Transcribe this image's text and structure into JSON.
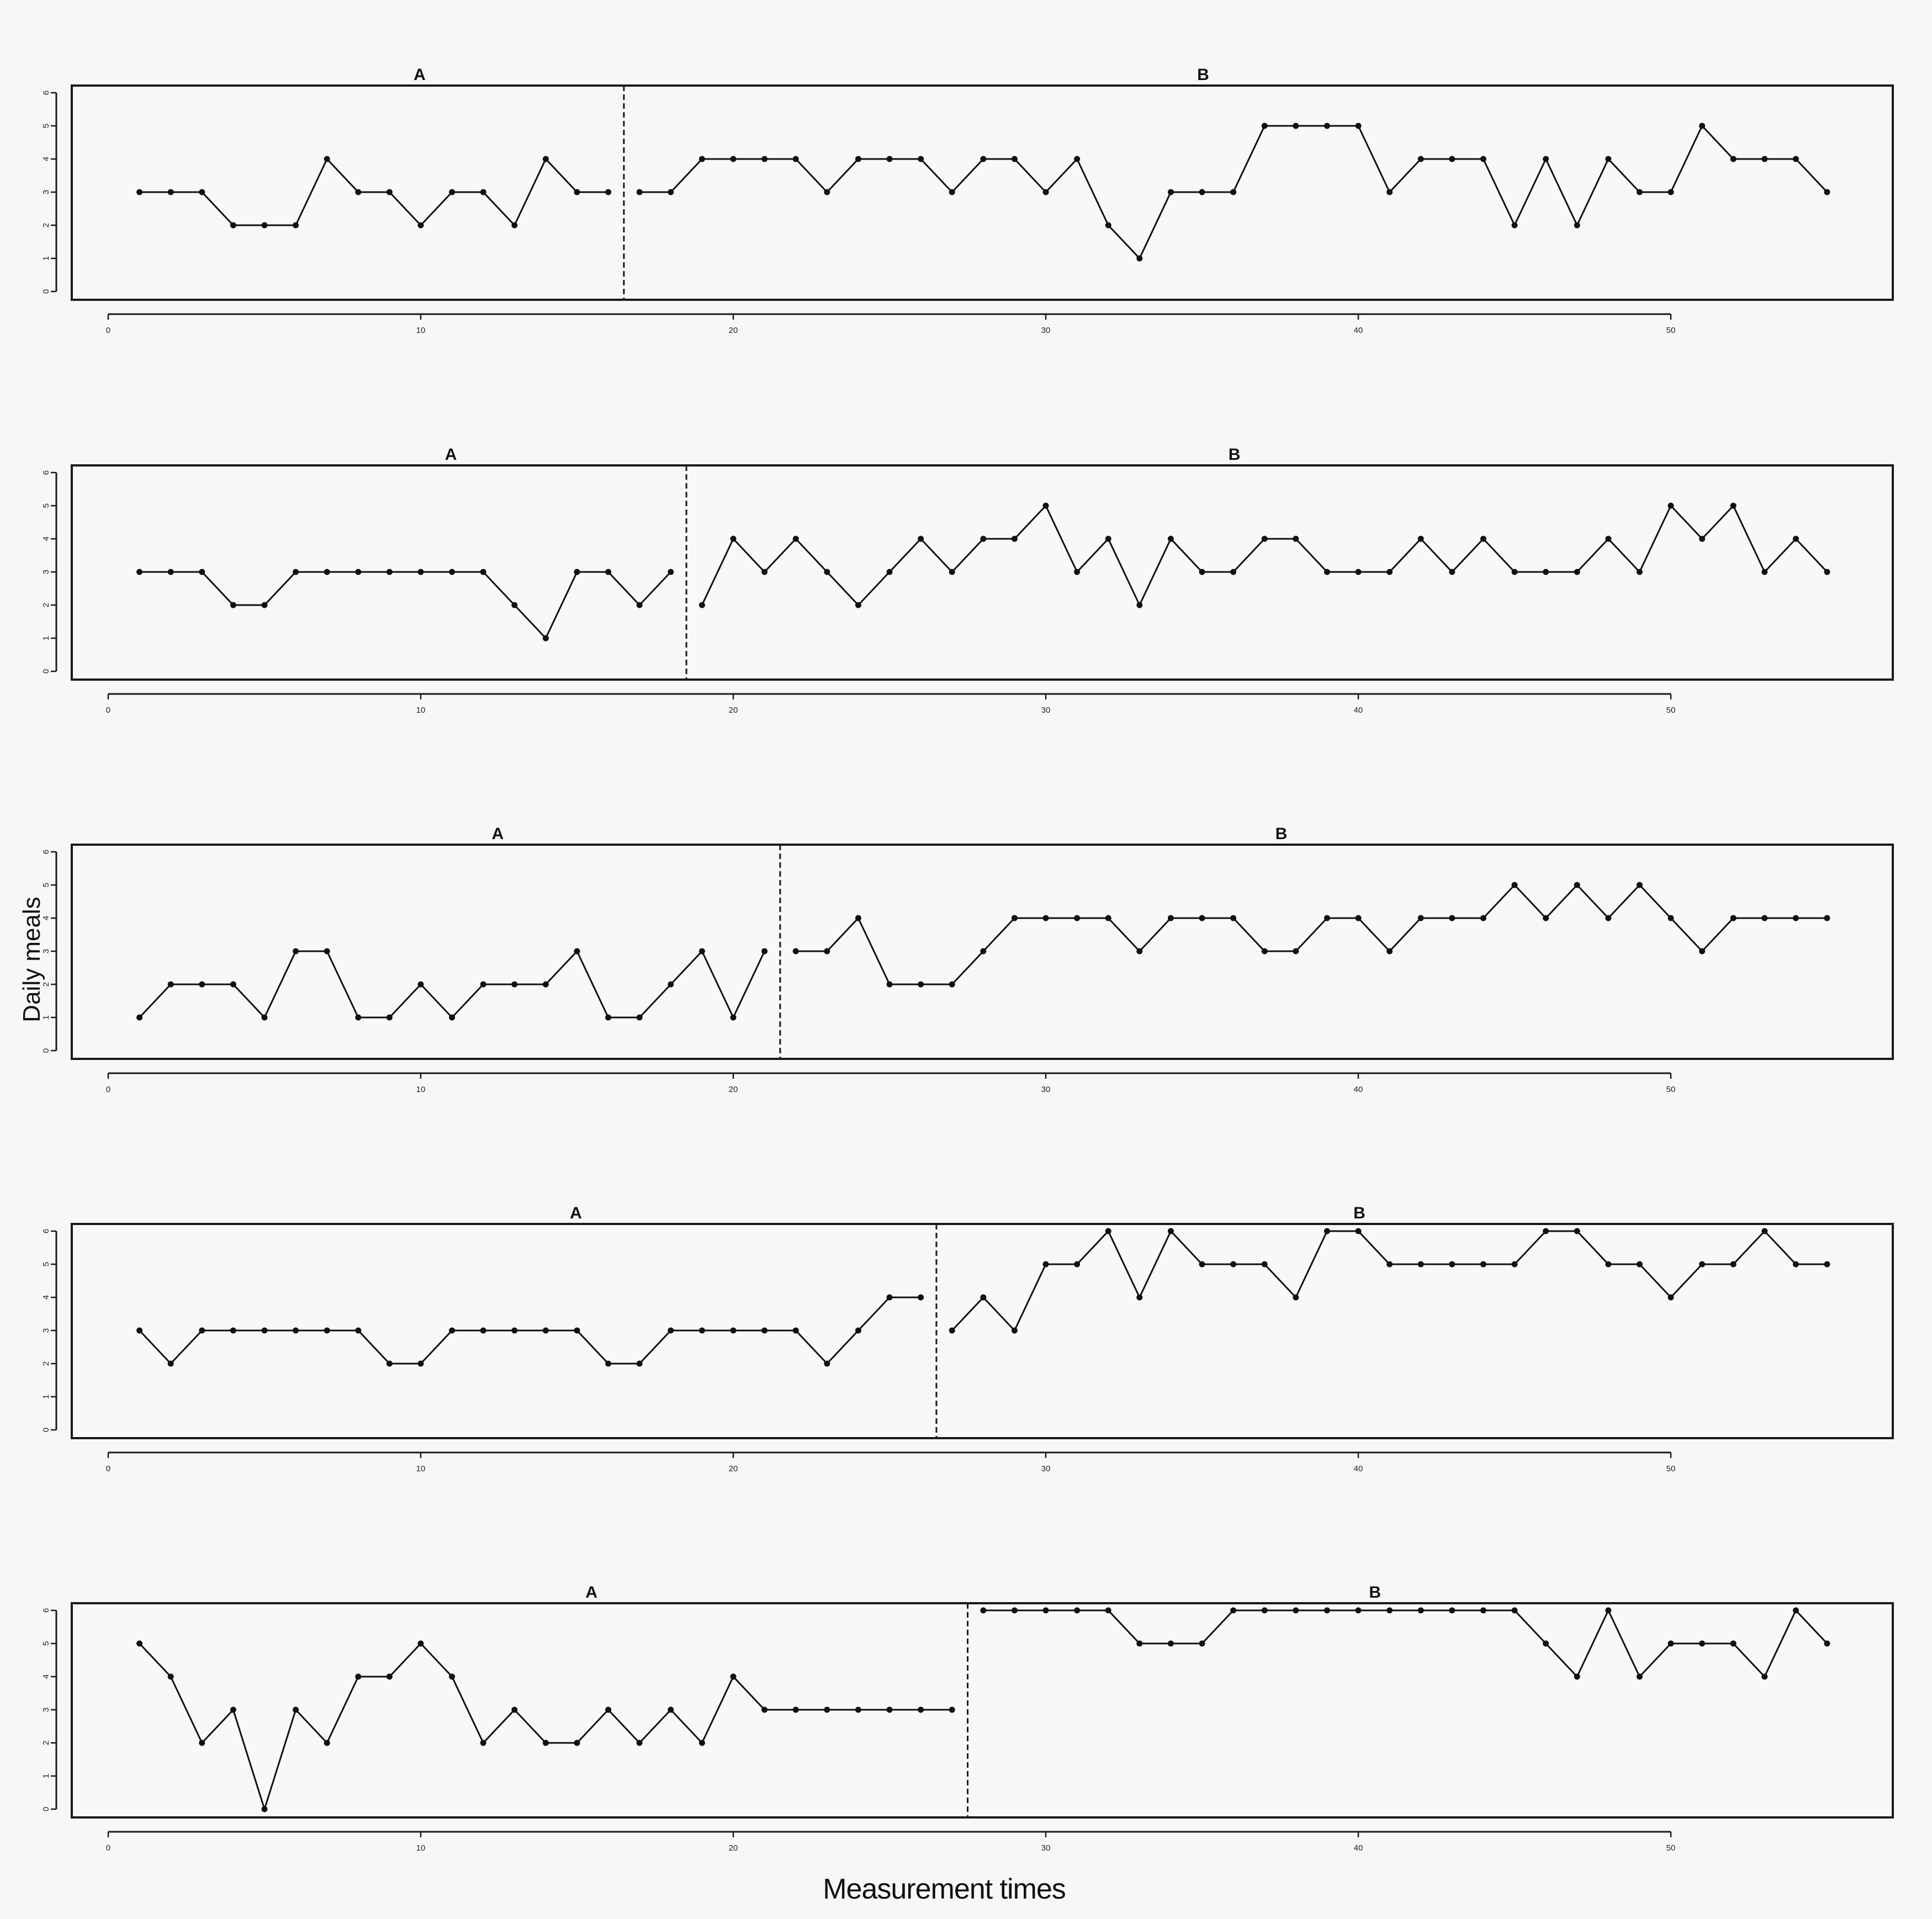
{
  "figure": {
    "ylabel": "Daily meals",
    "xlabel": "Measurement times"
  },
  "chart_data": [
    {
      "type": "line",
      "phase_labels": [
        "A",
        "B"
      ],
      "phase_change_after": 16.5,
      "xlim": [
        0,
        57
      ],
      "ylim": [
        0,
        6
      ],
      "xticks": [
        0,
        10,
        20,
        30,
        40,
        50
      ],
      "yticks": [
        0,
        1,
        2,
        3,
        4,
        5,
        6
      ],
      "phase_a": {
        "x": [
          1,
          2,
          3,
          4,
          5,
          6,
          7,
          8,
          9,
          10,
          11,
          12,
          13,
          14,
          15,
          16
        ],
        "y": [
          3,
          3,
          3,
          2,
          2,
          2,
          4,
          3,
          3,
          2,
          3,
          3,
          2,
          4,
          3,
          3
        ]
      },
      "phase_b": {
        "x": [
          17,
          18,
          19,
          20,
          21,
          22,
          23,
          24,
          25,
          26,
          27,
          28,
          29,
          30,
          31,
          32,
          33,
          34,
          35,
          36,
          37,
          38,
          39,
          40,
          41,
          42,
          43,
          44,
          45,
          46,
          47,
          48,
          49,
          50,
          51,
          52,
          53,
          54,
          55
        ],
        "y": [
          3,
          3,
          4,
          4,
          4,
          4,
          3,
          4,
          4,
          4,
          3,
          4,
          4,
          3,
          4,
          2,
          1,
          3,
          3,
          3,
          5,
          5,
          5,
          5,
          3,
          4,
          4,
          4,
          2,
          4,
          2,
          4,
          3,
          3,
          5,
          4,
          4,
          4,
          3
        ]
      }
    },
    {
      "type": "line",
      "phase_labels": [
        "A",
        "B"
      ],
      "phase_change_after": 18.5,
      "xlim": [
        0,
        57
      ],
      "ylim": [
        0,
        6
      ],
      "xticks": [
        0,
        10,
        20,
        30,
        40,
        50
      ],
      "yticks": [
        0,
        1,
        2,
        3,
        4,
        5,
        6
      ],
      "phase_a": {
        "x": [
          1,
          2,
          3,
          4,
          5,
          6,
          7,
          8,
          9,
          10,
          11,
          12,
          13,
          14,
          15,
          16,
          17,
          18
        ],
        "y": [
          3,
          3,
          3,
          2,
          2,
          3,
          3,
          3,
          3,
          3,
          3,
          3,
          2,
          1,
          3,
          3,
          2,
          3
        ]
      },
      "phase_b": {
        "x": [
          19,
          20,
          21,
          22,
          23,
          24,
          25,
          26,
          27,
          28,
          29,
          30,
          31,
          32,
          33,
          34,
          35,
          36,
          37,
          38,
          39,
          40,
          41,
          42,
          43,
          44,
          45,
          46,
          47,
          48,
          49,
          50,
          51,
          52,
          53,
          54,
          55
        ],
        "y": [
          2,
          4,
          3,
          4,
          3,
          2,
          3,
          4,
          3,
          4,
          4,
          5,
          3,
          4,
          2,
          4,
          3,
          3,
          4,
          4,
          3,
          3,
          3,
          4,
          3,
          4,
          3,
          3,
          3,
          4,
          3,
          5,
          4,
          5,
          3,
          4,
          3
        ]
      }
    },
    {
      "type": "line",
      "phase_labels": [
        "A",
        "B"
      ],
      "phase_change_after": 21.5,
      "xlim": [
        0,
        57
      ],
      "ylim": [
        0,
        6
      ],
      "xticks": [
        0,
        10,
        20,
        30,
        40,
        50
      ],
      "yticks": [
        0,
        1,
        2,
        3,
        4,
        5,
        6
      ],
      "phase_a": {
        "x": [
          1,
          2,
          3,
          4,
          5,
          6,
          7,
          8,
          9,
          10,
          11,
          12,
          13,
          14,
          15,
          16,
          17,
          18,
          19,
          20,
          21
        ],
        "y": [
          1,
          2,
          2,
          2,
          1,
          3,
          3,
          1,
          1,
          2,
          1,
          2,
          2,
          2,
          3,
          1,
          1,
          2,
          3,
          1,
          3
        ]
      },
      "phase_b": {
        "x": [
          22,
          23,
          24,
          25,
          26,
          27,
          28,
          29,
          30,
          31,
          32,
          33,
          34,
          35,
          36,
          37,
          38,
          39,
          40,
          41,
          42,
          43,
          44,
          45,
          46,
          47,
          48,
          49,
          50,
          51,
          52,
          53,
          54,
          55
        ],
        "y": [
          3,
          3,
          4,
          2,
          2,
          2,
          3,
          4,
          4,
          4,
          4,
          3,
          4,
          4,
          4,
          3,
          3,
          4,
          4,
          3,
          4,
          4,
          4,
          5,
          4,
          5,
          4,
          5,
          4,
          3,
          4,
          4,
          4,
          4
        ]
      }
    },
    {
      "type": "line",
      "phase_labels": [
        "A",
        "B"
      ],
      "phase_change_after": 26.5,
      "xlim": [
        0,
        57
      ],
      "ylim": [
        0,
        6
      ],
      "xticks": [
        0,
        10,
        20,
        30,
        40,
        50
      ],
      "yticks": [
        0,
        1,
        2,
        3,
        4,
        5,
        6
      ],
      "phase_a": {
        "x": [
          1,
          2,
          3,
          4,
          5,
          6,
          7,
          8,
          9,
          10,
          11,
          12,
          13,
          14,
          15,
          16,
          17,
          18,
          19,
          20,
          21,
          22,
          23,
          24,
          25,
          26
        ],
        "y": [
          3,
          2,
          3,
          3,
          3,
          3,
          3,
          3,
          2,
          2,
          3,
          3,
          3,
          3,
          3,
          2,
          2,
          3,
          3,
          3,
          3,
          3,
          2,
          3,
          4,
          4
        ]
      },
      "phase_b": {
        "x": [
          27,
          28,
          29,
          30,
          31,
          32,
          33,
          34,
          35,
          36,
          37,
          38,
          39,
          40,
          41,
          42,
          43,
          44,
          45,
          46,
          47,
          48,
          49,
          50,
          51,
          52,
          53,
          54,
          55
        ],
        "y": [
          3,
          4,
          3,
          5,
          5,
          6,
          4,
          6,
          5,
          5,
          5,
          4,
          6,
          6,
          5,
          5,
          5,
          5,
          5,
          6,
          6,
          5,
          5,
          4,
          5,
          5,
          6,
          5,
          5
        ]
      }
    },
    {
      "type": "line",
      "phase_labels": [
        "A",
        "B"
      ],
      "phase_change_after": 27.5,
      "xlim": [
        0,
        57
      ],
      "ylim": [
        0,
        6
      ],
      "xticks": [
        0,
        10,
        20,
        30,
        40,
        50
      ],
      "yticks": [
        0,
        1,
        2,
        3,
        4,
        5,
        6
      ],
      "phase_a": {
        "x": [
          1,
          2,
          3,
          4,
          5,
          6,
          7,
          8,
          9,
          10,
          11,
          12,
          13,
          14,
          15,
          16,
          17,
          18,
          19,
          20,
          21,
          22,
          23,
          24,
          25,
          26,
          27
        ],
        "y": [
          5,
          4,
          2,
          3,
          0,
          3,
          2,
          4,
          4,
          5,
          4,
          2,
          3,
          2,
          2,
          3,
          2,
          3,
          2,
          4,
          3,
          3,
          3,
          3,
          3,
          3,
          3
        ]
      },
      "phase_b": {
        "x": [
          28,
          29,
          30,
          31,
          32,
          33,
          34,
          35,
          36,
          37,
          38,
          39,
          40,
          41,
          42,
          43,
          44,
          45,
          46,
          47,
          48,
          49,
          50,
          51,
          52,
          53,
          54,
          55
        ],
        "y": [
          6,
          6,
          6,
          6,
          6,
          5,
          5,
          5,
          6,
          6,
          6,
          6,
          6,
          6,
          6,
          6,
          6,
          6,
          5,
          4,
          6,
          4,
          5,
          5,
          5,
          4,
          6,
          5
        ]
      }
    }
  ]
}
